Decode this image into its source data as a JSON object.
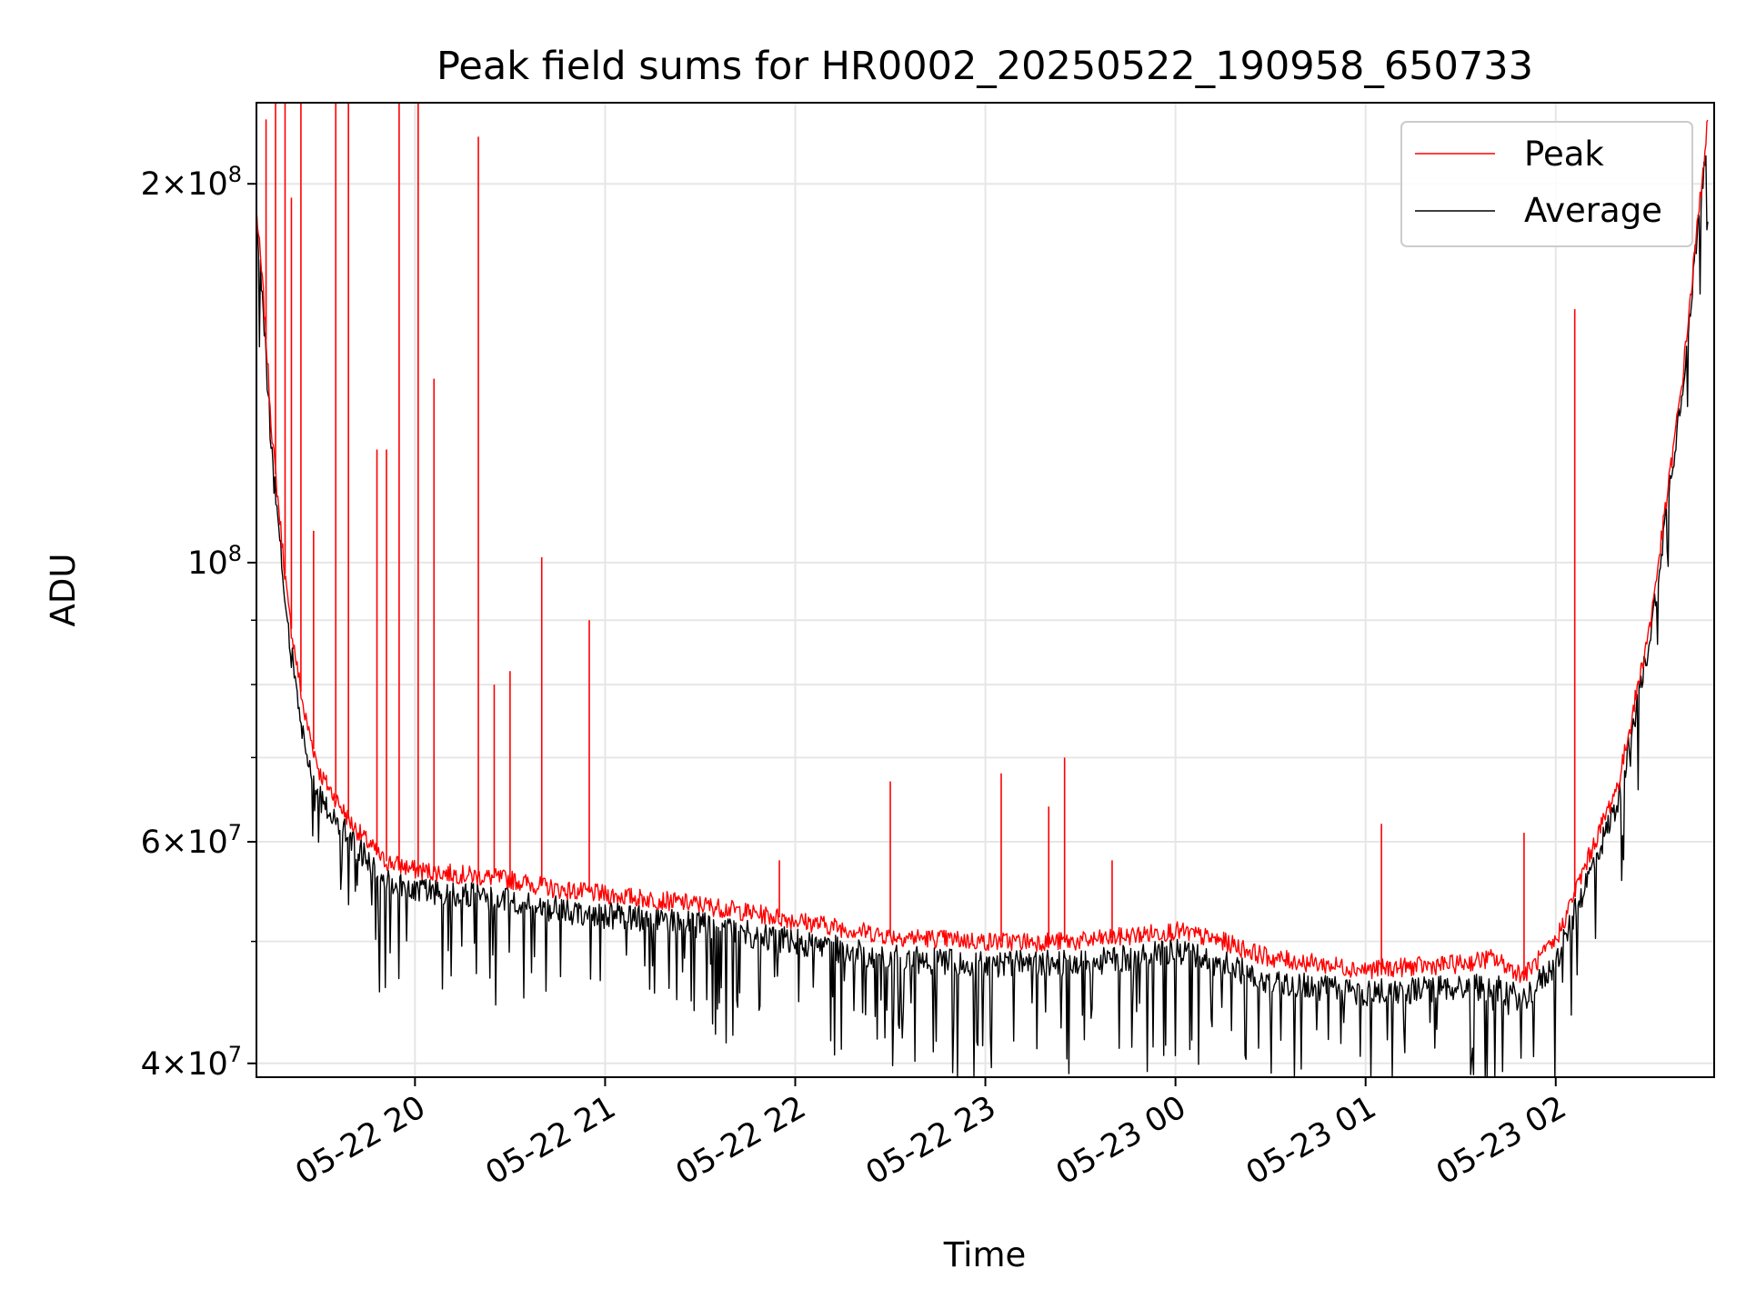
{
  "chart_data": {
    "type": "line",
    "title": "Peak field sums for HR0002_20250522_190958_650733",
    "xlabel": "Time",
    "ylabel": "ADU",
    "y_scale": "log",
    "ylim": [
      39000000,
      232000000
    ],
    "xlim": [
      "2025-05-22 19:09:58",
      "2025-05-23 02:50:00"
    ],
    "grid": true,
    "legend_position": "top-right",
    "x_tick_labels": [
      "05-22 20",
      "05-22 21",
      "05-22 22",
      "05-22 23",
      "05-23 00",
      "05-23 01",
      "05-23 02"
    ],
    "x_tick_values": [
      "2025-05-22 20:00",
      "2025-05-22 21:00",
      "2025-05-22 22:00",
      "2025-05-22 23:00",
      "2025-05-23 00:00",
      "2025-05-23 01:00",
      "2025-05-23 02:00"
    ],
    "y_tick_labels": [
      {
        "value": 40000000,
        "mantissa": "4",
        "exp": "7"
      },
      {
        "value": 60000000,
        "mantissa": "6",
        "exp": "7"
      },
      {
        "value": 100000000,
        "mantissa": "",
        "exp": "8"
      },
      {
        "value": 200000000,
        "mantissa": "2",
        "exp": "8"
      }
    ],
    "x": [
      "2025-05-22 19:10",
      "2025-05-22 19:12",
      "2025-05-22 19:15",
      "2025-05-22 19:20",
      "2025-05-22 19:25",
      "2025-05-22 19:30",
      "2025-05-22 19:40",
      "2025-05-22 19:50",
      "2025-05-22 20:00",
      "2025-05-22 20:15",
      "2025-05-22 20:30",
      "2025-05-22 20:45",
      "2025-05-22 21:00",
      "2025-05-22 21:30",
      "2025-05-22 22:00",
      "2025-05-22 22:30",
      "2025-05-22 23:00",
      "2025-05-22 23:30",
      "2025-05-23 00:00",
      "2025-05-23 00:15",
      "2025-05-23 00:30",
      "2025-05-23 01:00",
      "2025-05-23 01:30",
      "2025-05-23 01:40",
      "2025-05-23 01:50",
      "2025-05-23 02:00",
      "2025-05-23 02:10",
      "2025-05-23 02:20",
      "2025-05-23 02:30",
      "2025-05-23 02:40",
      "2025-05-23 02:48"
    ],
    "series": [
      {
        "name": "Peak",
        "color": "#ff0000",
        "values": [
          190000000,
          165000000,
          125000000,
          92000000,
          76000000,
          68000000,
          62000000,
          58000000,
          57000000,
          56500000,
          56000000,
          55000000,
          54500000,
          53500000,
          52000000,
          50500000,
          50000000,
          50000000,
          51000000,
          50000000,
          48500000,
          47500000,
          48000000,
          48500000,
          47000000,
          50000000,
          58000000,
          67000000,
          90000000,
          140000000,
          225000000
        ],
        "spikes": [
          {
            "x": "2025-05-22 19:13",
            "y": 225000000
          },
          {
            "x": "2025-05-22 19:16",
            "y": 232000000
          },
          {
            "x": "2025-05-22 19:19",
            "y": 232000000
          },
          {
            "x": "2025-05-22 19:21",
            "y": 195000000
          },
          {
            "x": "2025-05-22 19:24",
            "y": 232000000
          },
          {
            "x": "2025-05-22 19:28",
            "y": 106000000
          },
          {
            "x": "2025-05-22 19:35",
            "y": 232000000
          },
          {
            "x": "2025-05-22 19:39",
            "y": 232000000
          },
          {
            "x": "2025-05-22 19:48",
            "y": 123000000
          },
          {
            "x": "2025-05-22 19:51",
            "y": 123000000
          },
          {
            "x": "2025-05-22 19:55",
            "y": 232000000
          },
          {
            "x": "2025-05-22 20:01",
            "y": 232000000
          },
          {
            "x": "2025-05-22 20:06",
            "y": 140000000
          },
          {
            "x": "2025-05-22 20:20",
            "y": 218000000
          },
          {
            "x": "2025-05-22 20:25",
            "y": 80000000
          },
          {
            "x": "2025-05-22 20:30",
            "y": 82000000
          },
          {
            "x": "2025-05-22 20:40",
            "y": 101000000
          },
          {
            "x": "2025-05-22 20:55",
            "y": 90000000
          },
          {
            "x": "2025-05-22 21:55",
            "y": 58000000
          },
          {
            "x": "2025-05-22 22:30",
            "y": 67000000
          },
          {
            "x": "2025-05-22 23:05",
            "y": 68000000
          },
          {
            "x": "2025-05-22 23:20",
            "y": 64000000
          },
          {
            "x": "2025-05-22 23:25",
            "y": 70000000
          },
          {
            "x": "2025-05-22 23:40",
            "y": 58000000
          },
          {
            "x": "2025-05-23 01:05",
            "y": 62000000
          },
          {
            "x": "2025-05-23 01:50",
            "y": 61000000
          },
          {
            "x": "2025-05-23 02:06",
            "y": 159000000
          }
        ]
      },
      {
        "name": "Average",
        "color": "#000000",
        "values": [
          188000000,
          160000000,
          120000000,
          88000000,
          72000000,
          65000000,
          60000000,
          56000000,
          55000000,
          54500000,
          54000000,
          53000000,
          52500000,
          51500000,
          50000000,
          48500000,
          48000000,
          48000000,
          49000000,
          48000000,
          46500000,
          45500000,
          46000000,
          46000000,
          45000000,
          48000000,
          56000000,
          65000000,
          88000000,
          138000000,
          222000000
        ]
      }
    ]
  }
}
